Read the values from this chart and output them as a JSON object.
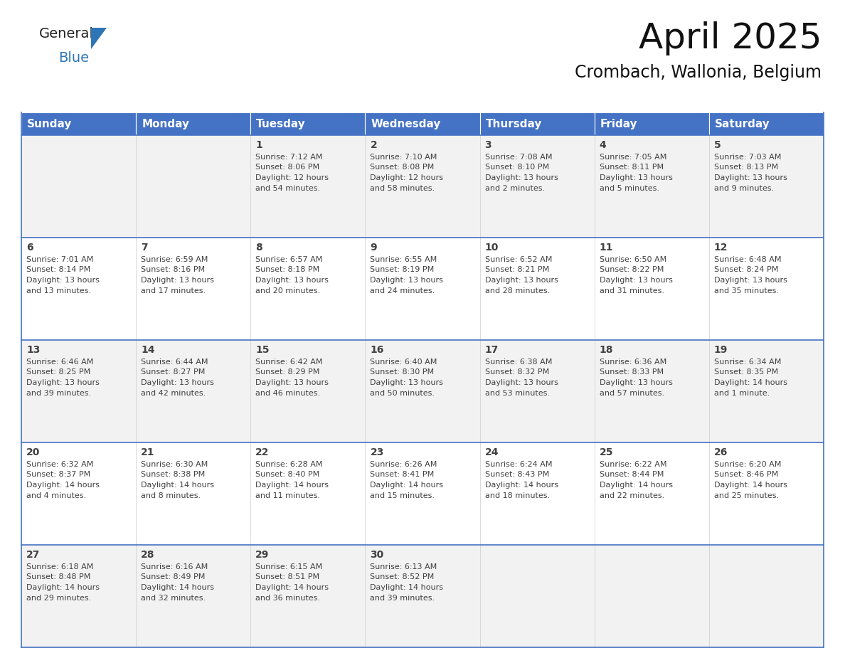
{
  "title": "April 2025",
  "subtitle": "Crombach, Wallonia, Belgium",
  "header_bg": "#4472C4",
  "header_text_color": "#FFFFFF",
  "cell_bg_odd": "#F2F2F2",
  "cell_bg_even": "#FFFFFF",
  "border_color": "#4472C4",
  "text_color": "#404040",
  "days_of_week": [
    "Sunday",
    "Monday",
    "Tuesday",
    "Wednesday",
    "Thursday",
    "Friday",
    "Saturday"
  ],
  "weeks": [
    [
      {
        "day": "",
        "lines": []
      },
      {
        "day": "",
        "lines": []
      },
      {
        "day": "1",
        "lines": [
          "Sunrise: 7:12 AM",
          "Sunset: 8:06 PM",
          "Daylight: 12 hours",
          "and 54 minutes."
        ]
      },
      {
        "day": "2",
        "lines": [
          "Sunrise: 7:10 AM",
          "Sunset: 8:08 PM",
          "Daylight: 12 hours",
          "and 58 minutes."
        ]
      },
      {
        "day": "3",
        "lines": [
          "Sunrise: 7:08 AM",
          "Sunset: 8:10 PM",
          "Daylight: 13 hours",
          "and 2 minutes."
        ]
      },
      {
        "day": "4",
        "lines": [
          "Sunrise: 7:05 AM",
          "Sunset: 8:11 PM",
          "Daylight: 13 hours",
          "and 5 minutes."
        ]
      },
      {
        "day": "5",
        "lines": [
          "Sunrise: 7:03 AM",
          "Sunset: 8:13 PM",
          "Daylight: 13 hours",
          "and 9 minutes."
        ]
      }
    ],
    [
      {
        "day": "6",
        "lines": [
          "Sunrise: 7:01 AM",
          "Sunset: 8:14 PM",
          "Daylight: 13 hours",
          "and 13 minutes."
        ]
      },
      {
        "day": "7",
        "lines": [
          "Sunrise: 6:59 AM",
          "Sunset: 8:16 PM",
          "Daylight: 13 hours",
          "and 17 minutes."
        ]
      },
      {
        "day": "8",
        "lines": [
          "Sunrise: 6:57 AM",
          "Sunset: 8:18 PM",
          "Daylight: 13 hours",
          "and 20 minutes."
        ]
      },
      {
        "day": "9",
        "lines": [
          "Sunrise: 6:55 AM",
          "Sunset: 8:19 PM",
          "Daylight: 13 hours",
          "and 24 minutes."
        ]
      },
      {
        "day": "10",
        "lines": [
          "Sunrise: 6:52 AM",
          "Sunset: 8:21 PM",
          "Daylight: 13 hours",
          "and 28 minutes."
        ]
      },
      {
        "day": "11",
        "lines": [
          "Sunrise: 6:50 AM",
          "Sunset: 8:22 PM",
          "Daylight: 13 hours",
          "and 31 minutes."
        ]
      },
      {
        "day": "12",
        "lines": [
          "Sunrise: 6:48 AM",
          "Sunset: 8:24 PM",
          "Daylight: 13 hours",
          "and 35 minutes."
        ]
      }
    ],
    [
      {
        "day": "13",
        "lines": [
          "Sunrise: 6:46 AM",
          "Sunset: 8:25 PM",
          "Daylight: 13 hours",
          "and 39 minutes."
        ]
      },
      {
        "day": "14",
        "lines": [
          "Sunrise: 6:44 AM",
          "Sunset: 8:27 PM",
          "Daylight: 13 hours",
          "and 42 minutes."
        ]
      },
      {
        "day": "15",
        "lines": [
          "Sunrise: 6:42 AM",
          "Sunset: 8:29 PM",
          "Daylight: 13 hours",
          "and 46 minutes."
        ]
      },
      {
        "day": "16",
        "lines": [
          "Sunrise: 6:40 AM",
          "Sunset: 8:30 PM",
          "Daylight: 13 hours",
          "and 50 minutes."
        ]
      },
      {
        "day": "17",
        "lines": [
          "Sunrise: 6:38 AM",
          "Sunset: 8:32 PM",
          "Daylight: 13 hours",
          "and 53 minutes."
        ]
      },
      {
        "day": "18",
        "lines": [
          "Sunrise: 6:36 AM",
          "Sunset: 8:33 PM",
          "Daylight: 13 hours",
          "and 57 minutes."
        ]
      },
      {
        "day": "19",
        "lines": [
          "Sunrise: 6:34 AM",
          "Sunset: 8:35 PM",
          "Daylight: 14 hours",
          "and 1 minute."
        ]
      }
    ],
    [
      {
        "day": "20",
        "lines": [
          "Sunrise: 6:32 AM",
          "Sunset: 8:37 PM",
          "Daylight: 14 hours",
          "and 4 minutes."
        ]
      },
      {
        "day": "21",
        "lines": [
          "Sunrise: 6:30 AM",
          "Sunset: 8:38 PM",
          "Daylight: 14 hours",
          "and 8 minutes."
        ]
      },
      {
        "day": "22",
        "lines": [
          "Sunrise: 6:28 AM",
          "Sunset: 8:40 PM",
          "Daylight: 14 hours",
          "and 11 minutes."
        ]
      },
      {
        "day": "23",
        "lines": [
          "Sunrise: 6:26 AM",
          "Sunset: 8:41 PM",
          "Daylight: 14 hours",
          "and 15 minutes."
        ]
      },
      {
        "day": "24",
        "lines": [
          "Sunrise: 6:24 AM",
          "Sunset: 8:43 PM",
          "Daylight: 14 hours",
          "and 18 minutes."
        ]
      },
      {
        "day": "25",
        "lines": [
          "Sunrise: 6:22 AM",
          "Sunset: 8:44 PM",
          "Daylight: 14 hours",
          "and 22 minutes."
        ]
      },
      {
        "day": "26",
        "lines": [
          "Sunrise: 6:20 AM",
          "Sunset: 8:46 PM",
          "Daylight: 14 hours",
          "and 25 minutes."
        ]
      }
    ],
    [
      {
        "day": "27",
        "lines": [
          "Sunrise: 6:18 AM",
          "Sunset: 8:48 PM",
          "Daylight: 14 hours",
          "and 29 minutes."
        ]
      },
      {
        "day": "28",
        "lines": [
          "Sunrise: 6:16 AM",
          "Sunset: 8:49 PM",
          "Daylight: 14 hours",
          "and 32 minutes."
        ]
      },
      {
        "day": "29",
        "lines": [
          "Sunrise: 6:15 AM",
          "Sunset: 8:51 PM",
          "Daylight: 14 hours",
          "and 36 minutes."
        ]
      },
      {
        "day": "30",
        "lines": [
          "Sunrise: 6:13 AM",
          "Sunset: 8:52 PM",
          "Daylight: 14 hours",
          "and 39 minutes."
        ]
      },
      {
        "day": "",
        "lines": []
      },
      {
        "day": "",
        "lines": []
      },
      {
        "day": "",
        "lines": []
      }
    ]
  ],
  "logo_general_color": "#222222",
  "logo_blue_color": "#2E75B6",
  "title_fontsize": 36,
  "subtitle_fontsize": 17,
  "dow_fontsize": 11,
  "day_num_fontsize": 10,
  "info_fontsize": 8
}
